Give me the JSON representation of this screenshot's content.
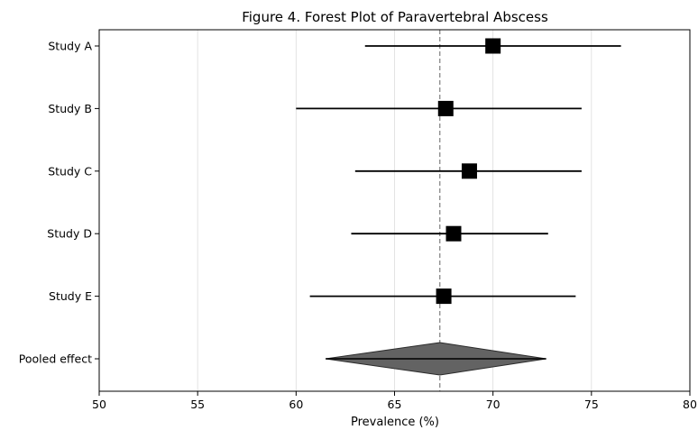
{
  "chart_data": {
    "type": "forest",
    "title": "Figure 4. Forest Plot of Paravertebral Abscess",
    "xlabel": "Prevalence (%)",
    "ylabel": "",
    "xlim": [
      50,
      80
    ],
    "xticks": [
      50,
      55,
      60,
      65,
      70,
      75,
      80
    ],
    "grid": "vertical",
    "reference_line": 67.3,
    "studies": [
      {
        "name": "Study A",
        "estimate": 70.0,
        "ci_low": 63.5,
        "ci_high": 76.5
      },
      {
        "name": "Study B",
        "estimate": 67.6,
        "ci_low": 60.0,
        "ci_high": 74.5
      },
      {
        "name": "Study C",
        "estimate": 68.8,
        "ci_low": 63.0,
        "ci_high": 74.5
      },
      {
        "name": "Study D",
        "estimate": 68.0,
        "ci_low": 62.8,
        "ci_high": 72.8
      },
      {
        "name": "Study E",
        "estimate": 67.5,
        "ci_low": 60.7,
        "ci_high": 74.2
      }
    ],
    "pooled": {
      "name": "Pooled effect",
      "estimate": 67.3,
      "ci_low": 61.5,
      "ci_high": 72.7
    }
  }
}
